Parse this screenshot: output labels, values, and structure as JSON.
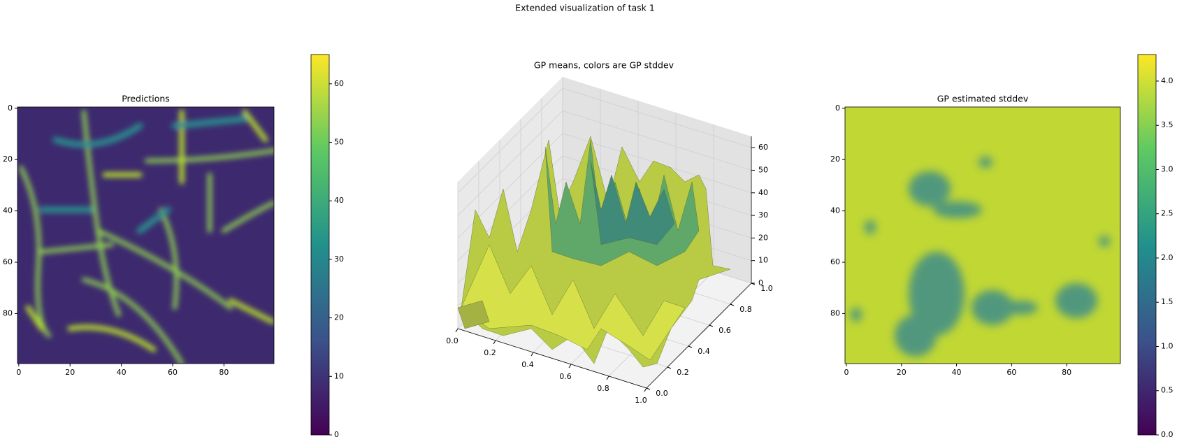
{
  "title": "Extended visualization of task 1",
  "chart_data": [
    {
      "type": "heatmap",
      "title": "Predictions",
      "xlim": [
        -0.5,
        99.5
      ],
      "xticks": [
        0,
        20,
        40,
        60,
        80
      ],
      "ylim": [
        99.5,
        -0.5
      ],
      "yticks": [
        0,
        20,
        40,
        60,
        80
      ],
      "colorbar_lim": [
        0,
        65
      ],
      "colorbar_ticks": [
        0,
        10,
        20,
        30,
        40,
        50,
        60
      ]
    },
    {
      "type": "surface3d",
      "title": "GP means, colors are GP stddev",
      "xlim": [
        0,
        1
      ],
      "xticks": [
        {
          "value": 0,
          "label": "0.0"
        },
        0.2,
        0.4,
        0.6,
        0.8,
        {
          "value": 1,
          "label": "1.0"
        }
      ],
      "ylim": [
        0,
        1
      ],
      "yticks": [
        {
          "value": 0,
          "label": "0.0"
        },
        0.2,
        0.4,
        0.6,
        0.8,
        {
          "value": 1,
          "label": "1.0"
        }
      ],
      "zlim": [
        0,
        65
      ],
      "zticks": [
        0,
        10,
        20,
        30,
        40,
        50,
        60
      ]
    },
    {
      "type": "heatmap",
      "title": "GP estimated stddev",
      "xlim": [
        -0.5,
        99.5
      ],
      "xticks": [
        0,
        20,
        40,
        60,
        80
      ],
      "ylim": [
        99.5,
        -0.5
      ],
      "yticks": [
        0,
        20,
        40,
        60,
        80
      ],
      "colorbar_lim": [
        0,
        4.3
      ],
      "colorbar_ticks": [
        {
          "value": 0,
          "label": "0.0"
        },
        0.5,
        {
          "value": 1,
          "label": "1.0"
        },
        1.5,
        {
          "value": 2,
          "label": "2.0"
        },
        2.5,
        {
          "value": 3,
          "label": "3.0"
        },
        3.5,
        {
          "value": 4,
          "label": "4.0"
        }
      ]
    }
  ]
}
